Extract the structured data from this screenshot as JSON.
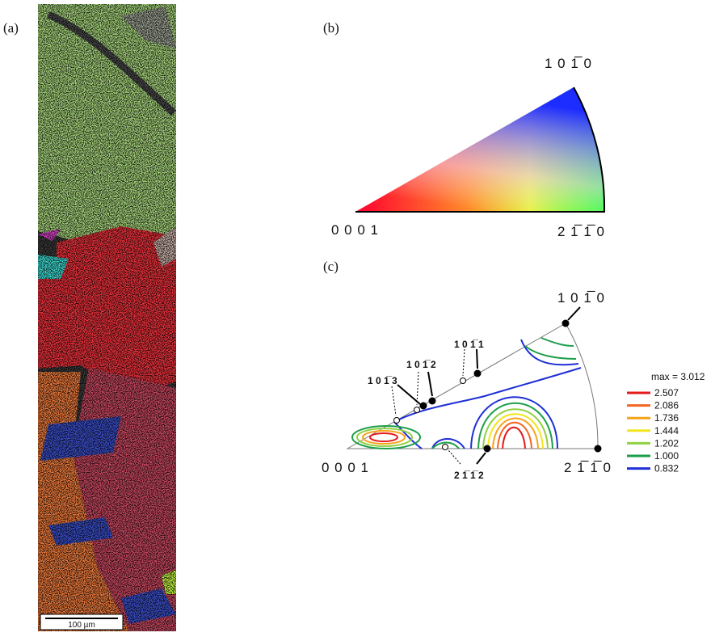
{
  "panels": {
    "a": {
      "label": "(a)",
      "scale_bar": "100 µm"
    },
    "b": {
      "label": "(b)",
      "corners": {
        "top": "1 0 1̅ 0",
        "left": "0 0 0 1",
        "right": "2 1̅ 1̅ 0"
      }
    },
    "c": {
      "label": "(c)",
      "corners": {
        "top": "1 0 1̅ 0",
        "left": "0 0 0 1",
        "right": "2 1̅ 1̅ 0"
      },
      "poles": [
        "1 0 1̅ 1",
        "1 0 1̅ 2",
        "1 0 1̅ 3",
        "2 1̅ 1̅ 2"
      ],
      "legend": {
        "title": "max = 3.012",
        "levels": [
          {
            "label": "2.507",
            "color": "#e41a1c"
          },
          {
            "label": "2.086",
            "color": "#f26522"
          },
          {
            "label": "1.736",
            "color": "#f7a31c"
          },
          {
            "label": "1.444",
            "color": "#f2e51c"
          },
          {
            "label": "1.202",
            "color": "#8fd13f"
          },
          {
            "label": "1.000",
            "color": "#1e9e4a"
          },
          {
            "label": "0.832",
            "color": "#1f2fd6"
          }
        ]
      }
    }
  }
}
